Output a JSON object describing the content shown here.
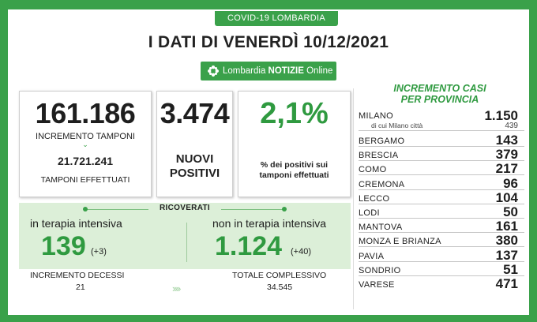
{
  "header": {
    "tag": "COVID-19 LOMBARDIA",
    "title": "I DATI DI VENERDÌ 10/12/2021",
    "brand_prefix": "Lombardia ",
    "brand_bold": "NOTIZIE",
    "brand_suffix": " Online"
  },
  "stats": {
    "tamponi_incremento": "161.186",
    "tamponi_incremento_label": "INCREMENTO TAMPONI",
    "tamponi_totale": "21.721.241",
    "tamponi_totale_label": "TAMPONI EFFETTUATI",
    "nuovi_positivi": "3.474",
    "nuovi_positivi_label_1": "NUOVI",
    "nuovi_positivi_label_2": "POSITIVI",
    "percentuale": "2,1%",
    "percentuale_label_1": "% dei positivi sui",
    "percentuale_label_2": "tamponi effettuati"
  },
  "ricoverati": {
    "label": "RICOVERATI",
    "ti_label": "in terapia intensiva",
    "ti_value": "139",
    "ti_delta": "(+3)",
    "nti_label": "non in terapia intensiva",
    "nti_value": "1.124",
    "nti_delta": "(+40)"
  },
  "decessi": {
    "label": "INCREMENTO DECESSI",
    "value": "21",
    "totale_label": "TOTALE COMPLESSIVO",
    "totale_value": "34.545"
  },
  "province": {
    "title_1": "INCREMENTO CASI",
    "title_2": "PER PROVINCIA",
    "milano_name": "MILANO",
    "milano_value": "1.150",
    "milano_city_label": "di cui Milano città",
    "milano_city_value": "439",
    "rows": [
      {
        "name": "BERGAMO",
        "value": "143"
      },
      {
        "name": "BRESCIA",
        "value": "379"
      },
      {
        "name": "COMO",
        "value": "217"
      },
      {
        "name": "CREMONA",
        "value": "96"
      },
      {
        "name": "LECCO",
        "value": "104"
      },
      {
        "name": "LODI",
        "value": "50"
      },
      {
        "name": "MANTOVA",
        "value": "161"
      },
      {
        "name": "MONZA E BRIANZA",
        "value": "380"
      },
      {
        "name": "PAVIA",
        "value": "137"
      },
      {
        "name": "SONDRIO",
        "value": "51"
      },
      {
        "name": "VARESE",
        "value": "471"
      }
    ]
  },
  "colors": {
    "brand_green": "#3aa14a",
    "panel_green": "#dcefd8"
  }
}
